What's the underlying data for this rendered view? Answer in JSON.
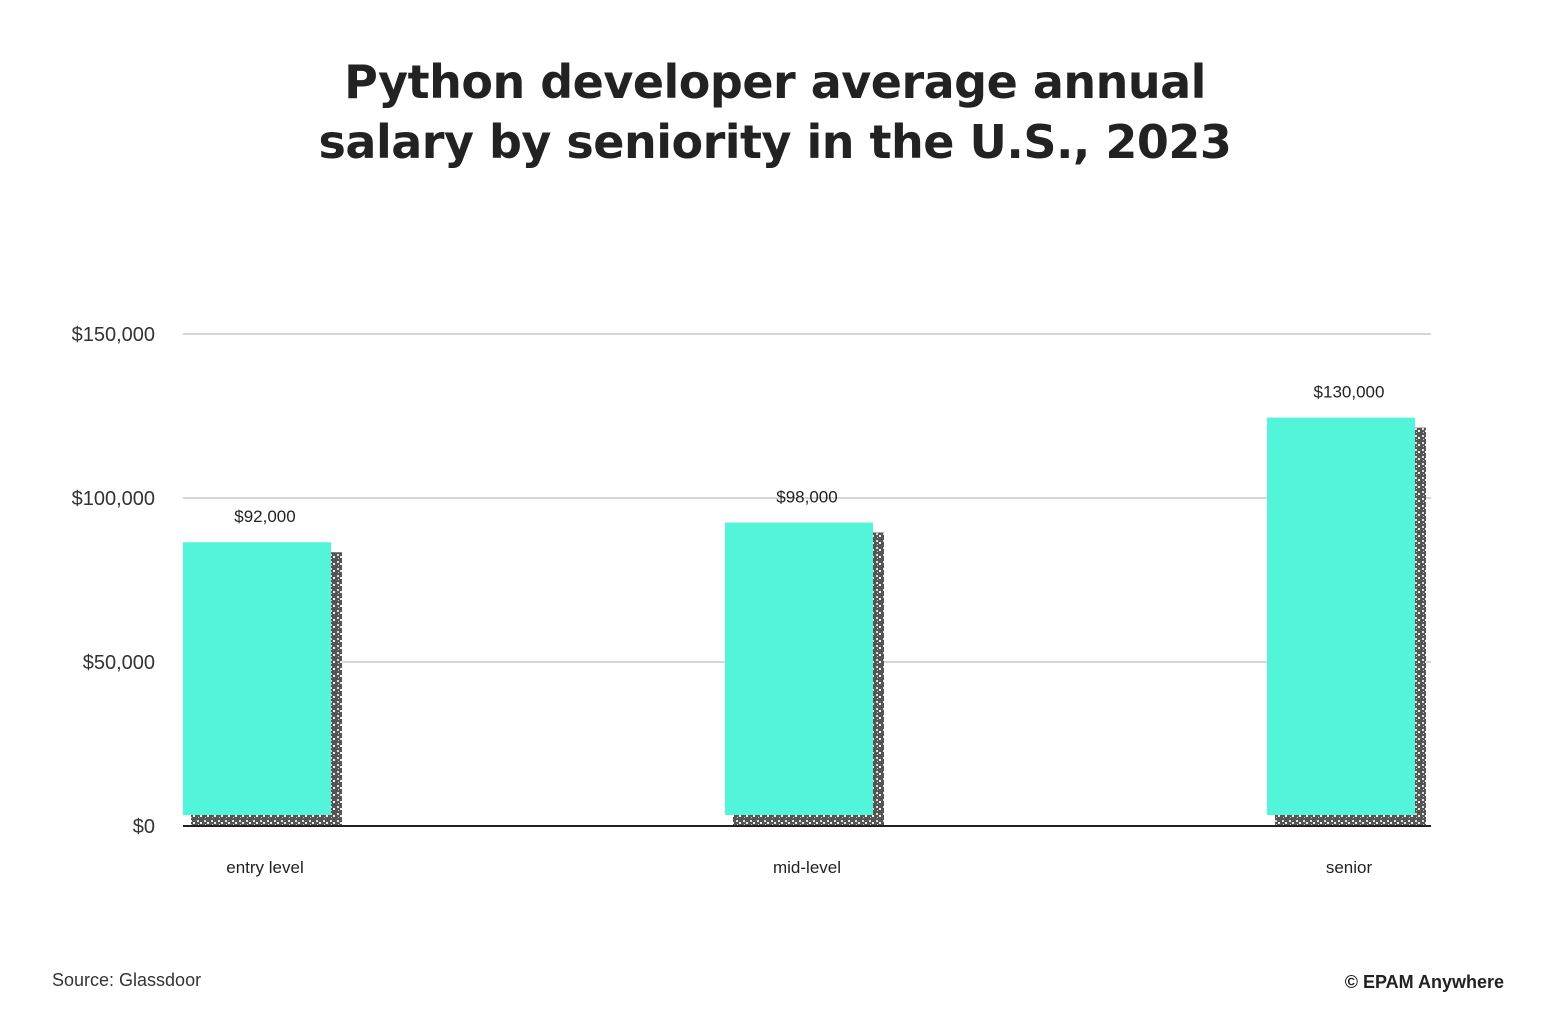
{
  "chart_data": {
    "type": "bar",
    "title_lines": [
      "Python developer average annual",
      "salary by seniority in the U.S., 2023"
    ],
    "categories": [
      "entry level",
      "mid-level",
      "senior"
    ],
    "values": [
      92000,
      98000,
      130000
    ],
    "data_labels": [
      "$92,000",
      "$98,000",
      "$130,000"
    ],
    "y_ticks": [
      0,
      50000,
      100000,
      150000
    ],
    "y_tick_labels": [
      "$0",
      "$50,000",
      "$100,000",
      "$150,000"
    ],
    "ylim": [
      0,
      150000
    ],
    "grid": true,
    "bar_color": "#52f5d9"
  },
  "footer": {
    "source": "Source: Glassdoor",
    "brand": "© EPAM Anywhere"
  }
}
